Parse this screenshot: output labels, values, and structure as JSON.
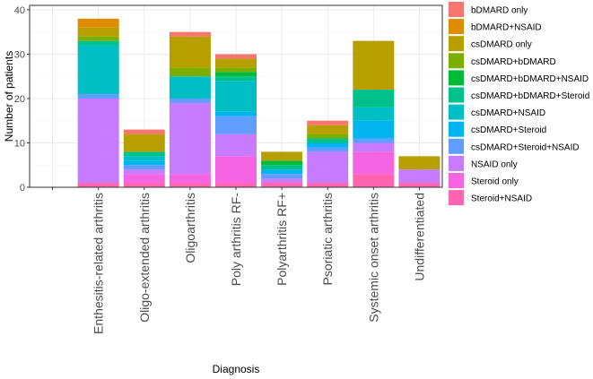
{
  "chart_data": {
    "type": "bar",
    "stacked": true,
    "title": "",
    "xlabel": "Diagnosis",
    "ylabel": "Number of patients",
    "ylim": [
      0,
      41
    ],
    "yticks": [
      0,
      10,
      20,
      30,
      40
    ],
    "grid": true,
    "legend_position": "right",
    "categories": [
      "",
      "Enthesitis-related arthritis",
      "Oligo-extended arthritis",
      "Oligoarthritis",
      "Poly arthritis RF-",
      "Polyarthritis RF+",
      "Psoriatic arthritis",
      "Systemic onset arthritis",
      "Undifferentiated"
    ],
    "series": [
      {
        "name": "bDMARD only",
        "color": "#F8766D",
        "values": [
          0,
          0,
          1,
          1,
          1,
          0,
          1,
          0,
          0
        ]
      },
      {
        "name": "bDMARD+NSAID",
        "color": "#DE8C00",
        "values": [
          0,
          2,
          0,
          0,
          0,
          0,
          0,
          0,
          0
        ]
      },
      {
        "name": "csDMARD only",
        "color": "#B79F00",
        "values": [
          0,
          2,
          4,
          7,
          2,
          2,
          2,
          11,
          3
        ]
      },
      {
        "name": "csDMARD+bDMARD",
        "color": "#7CAE00",
        "values": [
          0,
          1,
          0,
          2,
          1,
          0,
          1,
          0,
          0
        ]
      },
      {
        "name": "csDMARD+bDMARD+NSAID",
        "color": "#00BA38",
        "values": [
          0,
          0,
          0,
          0,
          1,
          1,
          0,
          0,
          0
        ]
      },
      {
        "name": "csDMARD+bDMARD+Steroid",
        "color": "#00C08B",
        "values": [
          0,
          1,
          1,
          0,
          1,
          1,
          1,
          4,
          0
        ]
      },
      {
        "name": "csDMARD+NSAID",
        "color": "#00BFC4",
        "values": [
          0,
          11,
          1,
          5,
          7,
          0,
          0,
          3,
          0
        ]
      },
      {
        "name": "csDMARD+Steroid",
        "color": "#00B4F0",
        "values": [
          0,
          0,
          1,
          0,
          1,
          1,
          1,
          4,
          0
        ]
      },
      {
        "name": "csDMARD+Steroid+NSAID",
        "color": "#619CFF",
        "values": [
          0,
          1,
          1,
          1,
          4,
          1,
          1,
          1,
          0
        ]
      },
      {
        "name": "NSAID only",
        "color": "#C77CFF",
        "values": [
          0,
          19,
          1,
          16,
          5,
          1,
          7,
          2,
          3
        ]
      },
      {
        "name": "Steroid only",
        "color": "#F564E3",
        "values": [
          0,
          0,
          2,
          2,
          6,
          0,
          0,
          5,
          0
        ]
      },
      {
        "name": "Steroid+NSAID",
        "color": "#FF64B0",
        "values": [
          0,
          1,
          1,
          1,
          1,
          1,
          1,
          3,
          1
        ]
      }
    ]
  }
}
